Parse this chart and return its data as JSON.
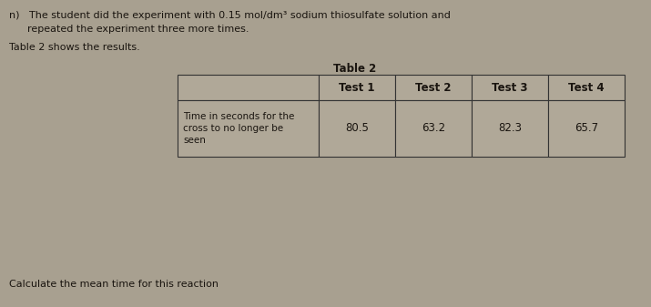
{
  "title_prefix": "n)",
  "paragraph_line1": "The student did the experiment with 0.15 mol/dm³ sodium thiosulfate solution and",
  "paragraph_line2": "repeated the experiment three more times.",
  "table_label": "Table 2 shows the results.",
  "table_title": "Table 2",
  "col_headers": [
    "Test 1",
    "Test 2",
    "Test 3",
    "Test 4"
  ],
  "row_label_lines": [
    "Time in seconds for the",
    "cross to no longer be",
    "seen"
  ],
  "row_values": [
    "80.5",
    "63.2",
    "82.3",
    "65.7"
  ],
  "footer_text": "Calculate the mean time for this reaction",
  "bg_color": "#a8a090",
  "table_cell_color": "#b0a898",
  "text_color": "#1a1510",
  "font_size_body": 8.0,
  "font_size_table_header": 8.5,
  "font_size_table_data": 8.5,
  "font_size_footer": 8.0
}
